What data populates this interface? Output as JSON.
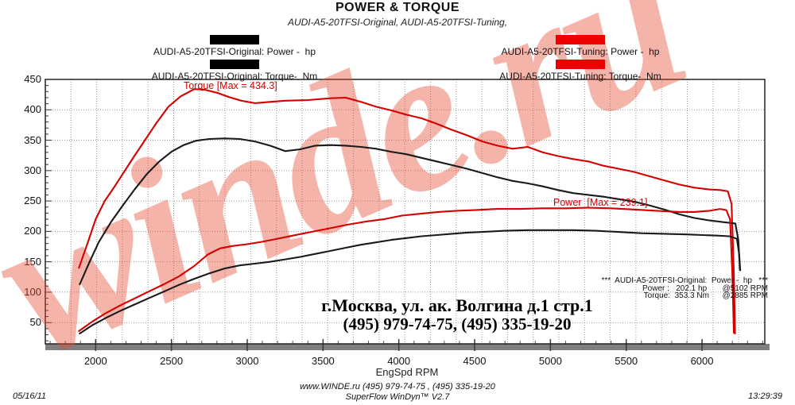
{
  "header": {
    "title": "POWER & TORQUE",
    "subtitle": "AUDI-A5-20TFSI-Original, AUDI-A5-20TFSI-Tuning,"
  },
  "legend": {
    "original": {
      "color": "#000000",
      "power_label": "AUDI-A5-20TFSI-Original: Power -  hp",
      "torque_label": "AUDI-A5-20TFSI-Original: Torque-  Nm"
    },
    "tuning": {
      "color": "#ee0000",
      "power_label": "AUDI-A5-20TFSI-Tuning: Power -  hp",
      "torque_label": "AUDI-A5-20TFSI-Tuning: Torque-  Nm"
    }
  },
  "annotations": {
    "torque_max": "Torque [Max = 434.3]",
    "power_max": "Power  [Max = 239.1]"
  },
  "info_box": {
    "line1": "***  AUDI-A5-20TFSI-Original:  Power -  hp   ***",
    "line2": "Power :   202.1 hp       @5102 RPM",
    "line3": "Torque:  353.3 Nm      @2885 RPM"
  },
  "address": {
    "line1": "г.Москва, ул. ак. Волгина д.1 стр.1",
    "line2": "(495) 979-74-75, (495) 335-19-20"
  },
  "watermark": {
    "text": "winde.ru",
    "color": "#e84c33"
  },
  "footer": {
    "date": "05/16/11",
    "center_line1": "www.WINDE.ru  (495) 979-74-75 , (495) 335-19-20",
    "center_line2": "SuperFlow WinDyn™ V2.7",
    "time": "13:29:39"
  },
  "chart_data": {
    "type": "line",
    "title": "POWER & TORQUE",
    "xlabel": "EngSpd  RPM",
    "ylabel": "",
    "x_ticks": [
      2000,
      2500,
      3000,
      3500,
      4000,
      4500,
      5000,
      5500,
      6000
    ],
    "y_ticks": [
      450,
      400,
      350,
      300,
      250,
      200,
      150,
      100,
      50
    ],
    "x_range": [
      1668,
      6414
    ],
    "y_range": [
      15,
      450
    ],
    "grid": "dotted",
    "legend_position": "top",
    "series": [
      {
        "name": "AUDI-A5-20TFSI-Tuning: Torque (Nm)",
        "color": "#d40000",
        "max": 434.3,
        "points": [
          [
            1890,
            140
          ],
          [
            1950,
            183
          ],
          [
            2000,
            220
          ],
          [
            2060,
            250
          ],
          [
            2120,
            272
          ],
          [
            2180,
            295
          ],
          [
            2250,
            322
          ],
          [
            2320,
            348
          ],
          [
            2400,
            378
          ],
          [
            2480,
            405
          ],
          [
            2560,
            422
          ],
          [
            2650,
            434
          ],
          [
            2720,
            433
          ],
          [
            2800,
            428
          ],
          [
            2880,
            421
          ],
          [
            2960,
            415
          ],
          [
            3050,
            411
          ],
          [
            3150,
            413
          ],
          [
            3250,
            415
          ],
          [
            3400,
            416
          ],
          [
            3550,
            419
          ],
          [
            3650,
            420
          ],
          [
            3750,
            413
          ],
          [
            3850,
            405
          ],
          [
            3950,
            399
          ],
          [
            4050,
            392
          ],
          [
            4150,
            386
          ],
          [
            4250,
            377
          ],
          [
            4350,
            367
          ],
          [
            4450,
            358
          ],
          [
            4550,
            348
          ],
          [
            4650,
            341
          ],
          [
            4750,
            336
          ],
          [
            4850,
            339
          ],
          [
            4950,
            330
          ],
          [
            5050,
            324
          ],
          [
            5150,
            319
          ],
          [
            5250,
            315
          ],
          [
            5350,
            308
          ],
          [
            5450,
            303
          ],
          [
            5550,
            298
          ],
          [
            5650,
            291
          ],
          [
            5750,
            284
          ],
          [
            5850,
            277
          ],
          [
            5950,
            272
          ],
          [
            6050,
            269
          ],
          [
            6120,
            268
          ],
          [
            6170,
            266
          ],
          [
            6195,
            245
          ],
          [
            6210,
            130
          ],
          [
            6218,
            32
          ]
        ]
      },
      {
        "name": "AUDI-A5-20TFSI-Original: Torque (Nm)",
        "color": "#1a1a1a",
        "max": 353.3,
        "max_at_rpm": 2885,
        "points": [
          [
            1895,
            113
          ],
          [
            1960,
            150
          ],
          [
            2020,
            182
          ],
          [
            2100,
            215
          ],
          [
            2180,
            243
          ],
          [
            2260,
            270
          ],
          [
            2340,
            295
          ],
          [
            2420,
            315
          ],
          [
            2500,
            331
          ],
          [
            2580,
            342
          ],
          [
            2660,
            349
          ],
          [
            2750,
            352
          ],
          [
            2850,
            353
          ],
          [
            2950,
            352
          ],
          [
            3050,
            348
          ],
          [
            3150,
            341
          ],
          [
            3250,
            332
          ],
          [
            3350,
            335
          ],
          [
            3450,
            341
          ],
          [
            3550,
            342
          ],
          [
            3650,
            341
          ],
          [
            3750,
            339
          ],
          [
            3850,
            336
          ],
          [
            3950,
            331
          ],
          [
            4050,
            327
          ],
          [
            4150,
            321
          ],
          [
            4250,
            315
          ],
          [
            4350,
            309
          ],
          [
            4450,
            303
          ],
          [
            4550,
            296
          ],
          [
            4650,
            289
          ],
          [
            4750,
            283
          ],
          [
            4850,
            279
          ],
          [
            4950,
            274
          ],
          [
            5050,
            268
          ],
          [
            5150,
            263
          ],
          [
            5250,
            260
          ],
          [
            5350,
            257
          ],
          [
            5450,
            253
          ],
          [
            5550,
            249
          ],
          [
            5650,
            243
          ],
          [
            5750,
            236
          ],
          [
            5850,
            228
          ],
          [
            5950,
            222
          ],
          [
            6050,
            218
          ],
          [
            6150,
            215
          ],
          [
            6220,
            213
          ],
          [
            6240,
            185
          ],
          [
            6250,
            137
          ]
        ]
      },
      {
        "name": "AUDI-A5-20TFSI-Tuning: Power (hp)",
        "color": "#d40000",
        "max": 239.1,
        "points": [
          [
            1890,
            36
          ],
          [
            1980,
            52
          ],
          [
            2070,
            66
          ],
          [
            2160,
            78
          ],
          [
            2250,
            89
          ],
          [
            2350,
            101
          ],
          [
            2450,
            113
          ],
          [
            2550,
            126
          ],
          [
            2650,
            143
          ],
          [
            2740,
            162
          ],
          [
            2820,
            172
          ],
          [
            2900,
            176
          ],
          [
            3000,
            179
          ],
          [
            3100,
            183
          ],
          [
            3200,
            188
          ],
          [
            3300,
            193
          ],
          [
            3420,
            199
          ],
          [
            3540,
            205
          ],
          [
            3660,
            211
          ],
          [
            3780,
            216
          ],
          [
            3900,
            220
          ],
          [
            4020,
            226
          ],
          [
            4140,
            229
          ],
          [
            4260,
            232
          ],
          [
            4380,
            234
          ],
          [
            4500,
            235
          ],
          [
            4650,
            237
          ],
          [
            4800,
            237
          ],
          [
            4950,
            238
          ],
          [
            5100,
            238
          ],
          [
            5250,
            239
          ],
          [
            5400,
            238
          ],
          [
            5550,
            236
          ],
          [
            5700,
            234
          ],
          [
            5850,
            232
          ],
          [
            5950,
            232
          ],
          [
            6050,
            234
          ],
          [
            6120,
            237
          ],
          [
            6160,
            235
          ],
          [
            6185,
            220
          ],
          [
            6200,
            130
          ],
          [
            6210,
            33
          ]
        ]
      },
      {
        "name": "AUDI-A5-20TFSI-Original: Power (hp)",
        "color": "#1a1a1a",
        "max": 202.1,
        "max_at_rpm": 5102,
        "points": [
          [
            1895,
            32
          ],
          [
            1980,
            46
          ],
          [
            2070,
            58
          ],
          [
            2160,
            69
          ],
          [
            2250,
            79
          ],
          [
            2350,
            90
          ],
          [
            2450,
            101
          ],
          [
            2550,
            112
          ],
          [
            2650,
            122
          ],
          [
            2750,
            131
          ],
          [
            2850,
            139
          ],
          [
            2950,
            144
          ],
          [
            3050,
            147
          ],
          [
            3150,
            150
          ],
          [
            3250,
            154
          ],
          [
            3350,
            158
          ],
          [
            3450,
            163
          ],
          [
            3550,
            168
          ],
          [
            3650,
            173
          ],
          [
            3750,
            178
          ],
          [
            3850,
            182
          ],
          [
            3950,
            186
          ],
          [
            4050,
            189
          ],
          [
            4150,
            192
          ],
          [
            4250,
            194
          ],
          [
            4350,
            196
          ],
          [
            4450,
            198
          ],
          [
            4550,
            199
          ],
          [
            4700,
            201
          ],
          [
            4850,
            202
          ],
          [
            5000,
            202
          ],
          [
            5150,
            202
          ],
          [
            5300,
            201
          ],
          [
            5450,
            199
          ],
          [
            5600,
            197
          ],
          [
            5750,
            196
          ],
          [
            5900,
            195
          ],
          [
            6000,
            194
          ],
          [
            6100,
            193
          ],
          [
            6180,
            192
          ],
          [
            6230,
            188
          ],
          [
            6245,
            162
          ],
          [
            6252,
            136
          ]
        ]
      }
    ]
  }
}
